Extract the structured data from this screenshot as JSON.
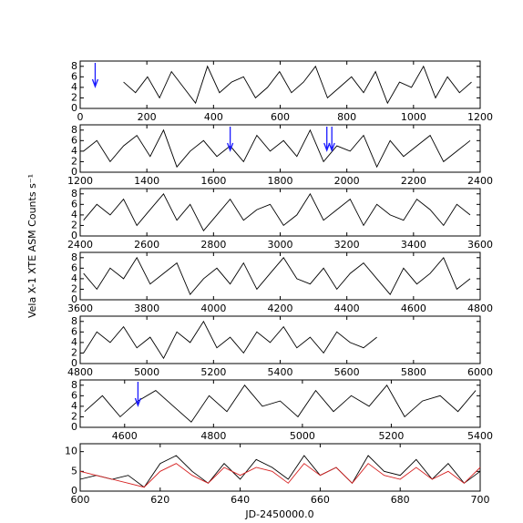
{
  "chart_data": [
    {
      "type": "line",
      "ylabel": "Vela X-1 XTE ASM Counts s⁻¹",
      "xlim": [
        0,
        1200
      ],
      "xticks": [
        0,
        200,
        400,
        600,
        800,
        1000,
        1200
      ],
      "ylim": [
        0,
        9
      ],
      "yticks": [
        0,
        2,
        4,
        6,
        8
      ],
      "arrows": [
        45
      ],
      "series": [
        {
          "color": "#000000",
          "x": [
            130,
            166,
            202,
            238,
            274,
            310,
            346,
            382,
            418,
            454,
            490,
            526,
            562,
            598,
            634,
            670,
            706,
            742,
            778,
            814,
            850,
            886,
            922,
            958,
            994,
            1030,
            1066,
            1102,
            1138,
            1174
          ],
          "values": [
            5,
            3,
            6,
            2,
            7,
            4,
            1,
            8,
            3,
            5,
            6,
            2,
            4,
            7,
            3,
            5,
            8,
            2,
            4,
            6,
            3,
            7,
            1,
            5,
            4,
            8,
            2,
            6,
            3,
            5
          ]
        }
      ]
    },
    {
      "type": "line",
      "xlim": [
        1200,
        2400
      ],
      "xticks": [
        1200,
        1400,
        1600,
        1800,
        2000,
        2200,
        2400
      ],
      "ylim": [
        0,
        9
      ],
      "yticks": [
        0,
        2,
        4,
        6,
        8
      ],
      "arrows": [
        1650,
        1940,
        1955
      ],
      "series": [
        {
          "color": "#000000",
          "x": [
            1210,
            1250,
            1290,
            1330,
            1370,
            1410,
            1450,
            1490,
            1530,
            1570,
            1610,
            1650,
            1690,
            1730,
            1770,
            1810,
            1850,
            1890,
            1930,
            1970,
            2010,
            2050,
            2090,
            2130,
            2170,
            2210,
            2250,
            2290,
            2330,
            2370
          ],
          "values": [
            4,
            6,
            2,
            5,
            7,
            3,
            8,
            1,
            4,
            6,
            3,
            5,
            2,
            7,
            4,
            6,
            3,
            8,
            2,
            5,
            4,
            7,
            1,
            6,
            3,
            5,
            7,
            2,
            4,
            6
          ]
        }
      ]
    },
    {
      "type": "line",
      "xlim": [
        2400,
        3600
      ],
      "xticks": [
        2400,
        2600,
        2800,
        3000,
        3200,
        3400,
        3600
      ],
      "ylim": [
        0,
        9
      ],
      "yticks": [
        0,
        2,
        4,
        6,
        8
      ],
      "series": [
        {
          "color": "#000000",
          "x": [
            2410,
            2450,
            2490,
            2530,
            2570,
            2610,
            2650,
            2690,
            2730,
            2770,
            2810,
            2850,
            2890,
            2930,
            2970,
            3010,
            3050,
            3090,
            3130,
            3170,
            3210,
            3250,
            3290,
            3330,
            3370,
            3410,
            3450,
            3490,
            3530,
            3570
          ],
          "values": [
            3,
            6,
            4,
            7,
            2,
            5,
            8,
            3,
            6,
            1,
            4,
            7,
            3,
            5,
            6,
            2,
            4,
            8,
            3,
            5,
            7,
            2,
            6,
            4,
            3,
            7,
            5,
            2,
            6,
            4
          ]
        }
      ]
    },
    {
      "type": "line",
      "xlim": [
        3600,
        4800
      ],
      "xticks": [
        3600,
        3800,
        4000,
        4200,
        4400,
        4600,
        4800
      ],
      "ylim": [
        0,
        9
      ],
      "yticks": [
        0,
        2,
        4,
        6,
        8
      ],
      "series": [
        {
          "color": "#000000",
          "x": [
            3610,
            3650,
            3690,
            3730,
            3770,
            3810,
            3850,
            3890,
            3930,
            3970,
            4010,
            4050,
            4090,
            4130,
            4170,
            4210,
            4250,
            4290,
            4330,
            4370,
            4410,
            4450,
            4490,
            4530,
            4570,
            4610,
            4650,
            4690,
            4730,
            4770
          ],
          "values": [
            5,
            2,
            6,
            4,
            8,
            3,
            5,
            7,
            1,
            4,
            6,
            3,
            7,
            2,
            5,
            8,
            4,
            3,
            6,
            2,
            5,
            7,
            4,
            1,
            6,
            3,
            5,
            8,
            2,
            4
          ]
        }
      ]
    },
    {
      "type": "line",
      "xlim": [
        4800,
        6000
      ],
      "xticks": [
        4800,
        5000,
        5200,
        5400,
        5600,
        5800,
        6000
      ],
      "ylim": [
        0,
        9
      ],
      "yticks": [
        0,
        2,
        4,
        6,
        8
      ],
      "series": [
        {
          "color": "#000000",
          "x": [
            4810,
            4850,
            4890,
            4930,
            4970,
            5010,
            5050,
            5090,
            5130,
            5170,
            5210,
            5250,
            5290,
            5330,
            5370,
            5410,
            5450,
            5490,
            5530,
            5570,
            5610,
            5650,
            5690
          ],
          "values": [
            2,
            6,
            4,
            7,
            3,
            5,
            1,
            6,
            4,
            8,
            3,
            5,
            2,
            6,
            4,
            7,
            3,
            5,
            2,
            6,
            4,
            3,
            5
          ]
        }
      ]
    },
    {
      "type": "line",
      "xlim": [
        4500,
        5400
      ],
      "xticks": [
        4600,
        4800,
        5000,
        5200,
        5400
      ],
      "ylim": [
        0,
        9
      ],
      "yticks": [
        0,
        2,
        4,
        6,
        8
      ],
      "arrows": [
        4630
      ],
      "series": [
        {
          "color": "#000000",
          "x": [
            4510,
            4550,
            4590,
            4630,
            4670,
            4710,
            4750,
            4790,
            4830,
            4870,
            4910,
            4950,
            4990,
            5030,
            5070,
            5110,
            5150,
            5190,
            5230,
            5270,
            5310,
            5350,
            5390
          ],
          "values": [
            3,
            6,
            2,
            5,
            7,
            4,
            1,
            6,
            3,
            8,
            4,
            5,
            2,
            7,
            3,
            6,
            4,
            8,
            2,
            5,
            6,
            3,
            7
          ]
        }
      ]
    },
    {
      "type": "line",
      "xlabel": "JD-2450000.0",
      "xlim": [
        600,
        700
      ],
      "xticks": [
        600,
        620,
        640,
        660,
        680,
        700
      ],
      "ylim": [
        0,
        12
      ],
      "yticks": [
        0,
        5,
        10
      ],
      "series": [
        {
          "color": "#000000",
          "x": [
            600,
            604,
            608,
            612,
            616,
            620,
            624,
            628,
            632,
            636,
            640,
            644,
            648,
            652,
            656,
            660,
            664,
            668,
            672,
            676,
            680,
            684,
            688,
            692,
            696,
            700
          ],
          "values": [
            3,
            4,
            3,
            4,
            1,
            7,
            9,
            5,
            2,
            7,
            3,
            8,
            6,
            3,
            9,
            4,
            6,
            2,
            9,
            5,
            4,
            8,
            3,
            7,
            2,
            5
          ]
        },
        {
          "color": "#d62020",
          "x": [
            600,
            604,
            608,
            612,
            616,
            620,
            624,
            628,
            632,
            636,
            640,
            644,
            648,
            652,
            656,
            660,
            664,
            668,
            672,
            676,
            680,
            684,
            688,
            692,
            696,
            700
          ],
          "values": [
            5,
            4,
            3,
            2,
            1,
            5,
            7,
            4,
            2,
            6,
            4,
            6,
            5,
            2,
            7,
            4,
            6,
            2,
            7,
            4,
            3,
            6,
            3,
            5,
            2,
            6
          ]
        }
      ]
    }
  ]
}
